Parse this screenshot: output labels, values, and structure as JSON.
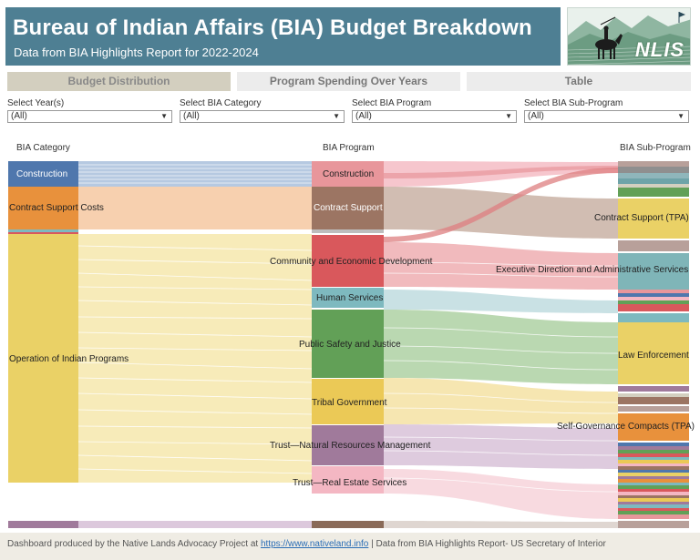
{
  "header": {
    "title": "Bureau of Indian Affairs (BIA) Budget Breakdown",
    "subtitle": "Data from BIA Highlights Report for 2022-2024"
  },
  "logo": {
    "text": "NLIS",
    "icon": "horse-rider-logo"
  },
  "tabs": [
    {
      "label": "Budget Distribution",
      "active": true
    },
    {
      "label": "Program Spending Over Years",
      "active": false
    },
    {
      "label": "Table",
      "active": false
    }
  ],
  "filters": [
    {
      "label": "Select Year(s)",
      "value": "(All)"
    },
    {
      "label": "Select BIA Category",
      "value": "(All)"
    },
    {
      "label": "Select BIA Program",
      "value": "(All)"
    },
    {
      "label": "Select BIA Sub-Program",
      "value": "(All)"
    }
  ],
  "columns": {
    "category": "BIA Category",
    "program": "BIA Program",
    "subprogram": "BIA Sub-Program"
  },
  "categories": [
    {
      "label": "Construction",
      "color": "#4f77ad"
    },
    {
      "label": "Contract Support Costs",
      "color": "#e8913c"
    },
    {
      "label": "Operation of Indian Programs",
      "color": "#ead166"
    }
  ],
  "programs": [
    {
      "label": "Construction",
      "color": "#e8969b"
    },
    {
      "label": "Contract Support",
      "color": "#9c7563"
    },
    {
      "label": "Community and Economic Development",
      "color": "#d9585c"
    },
    {
      "label": "Human Services",
      "color": "#7eb9bf"
    },
    {
      "label": "Public Safety and Justice",
      "color": "#62a057"
    },
    {
      "label": "Tribal Government",
      "color": "#ebc956"
    },
    {
      "label": "Trust—Natural Resources Management",
      "color": "#a07a9b"
    },
    {
      "label": "Trust—Real Estate Services",
      "color": "#f4b7c3"
    }
  ],
  "subprograms": [
    {
      "label": "Contract Support (TPA)",
      "color": "#ead166"
    },
    {
      "label": "Executive Direction and Administrative Services",
      "color": "#7fb5b8"
    },
    {
      "label": "Law Enforcement",
      "color": "#ead166"
    },
    {
      "label": "Self-Governance Compacts (TPA)",
      "color": "#e8913c"
    }
  ],
  "footer": {
    "text": "Dashboard produced by the Native Lands Advocacy Project at",
    "link": "https://www.nativeland.info",
    "source": "| Data from BIA Highlights Report- US Secretary of Interior"
  }
}
